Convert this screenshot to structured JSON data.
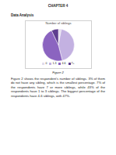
{
  "heading": "CHAPTER 4",
  "subheading": "Data Analysis",
  "chart_data": {
    "type": "pie",
    "title": "Number of siblings",
    "categories": [
      "0",
      "1-3",
      "4-6",
      "7+"
    ],
    "values": [
      3,
      43,
      47,
      7
    ],
    "colors": [
      "#e2dcec",
      "#c3b1e1",
      "#8b64c0",
      "#5e3d8f"
    ],
    "legend": "bottom"
  },
  "caption": "Figure 2",
  "paragraph": "Figure 2 shows the respondent's number of siblings. 3% of them do not have any sibling, which is the smallest percentage. 7% of the respondents have 7 or more siblings, while 43% of the respondents have 1 to 3 siblings. The biggest percentage of the respondents have 4-6 siblings, with 47%."
}
